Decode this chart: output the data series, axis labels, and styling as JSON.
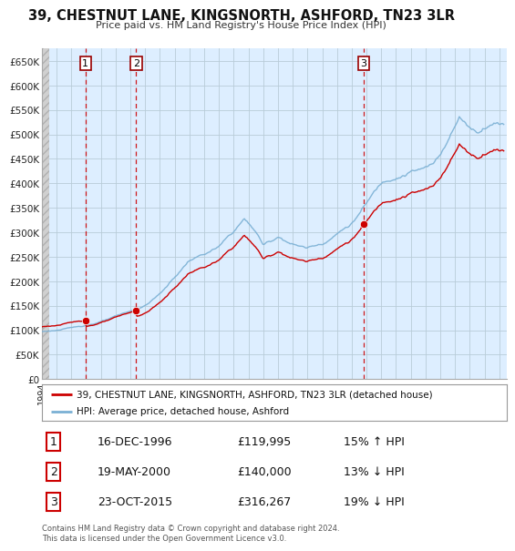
{
  "title": "39, CHESTNUT LANE, KINGSNORTH, ASHFORD, TN23 3LR",
  "subtitle": "Price paid vs. HM Land Registry's House Price Index (HPI)",
  "ylim": [
    0,
    675000
  ],
  "yticks": [
    0,
    50000,
    100000,
    150000,
    200000,
    250000,
    300000,
    350000,
    400000,
    450000,
    500000,
    550000,
    600000,
    650000
  ],
  "ytick_labels": [
    "£0",
    "£50K",
    "£100K",
    "£150K",
    "£200K",
    "£250K",
    "£300K",
    "£350K",
    "£400K",
    "£450K",
    "£500K",
    "£550K",
    "£600K",
    "£650K"
  ],
  "xlim_start": 1994.0,
  "xlim_end": 2025.5,
  "sale_dates": [
    1996.96,
    2000.38,
    2015.81
  ],
  "sale_prices": [
    119995,
    140000,
    316267
  ],
  "sale_labels": [
    "1",
    "2",
    "3"
  ],
  "property_color": "#cc0000",
  "hpi_color": "#7ab0d4",
  "dashed_line_color": "#cc0000",
  "chart_bg_color": "#ddeeff",
  "hatch_area_color": "#e8e8e8",
  "legend_property_label": "39, CHESTNUT LANE, KINGSNORTH, ASHFORD, TN23 3LR (detached house)",
  "legend_hpi_label": "HPI: Average price, detached house, Ashford",
  "table_rows": [
    [
      "1",
      "16-DEC-1996",
      "£119,995",
      "15% ↑ HPI"
    ],
    [
      "2",
      "19-MAY-2000",
      "£140,000",
      "13% ↓ HPI"
    ],
    [
      "3",
      "23-OCT-2015",
      "£316,267",
      "19% ↓ HPI"
    ]
  ],
  "footnote": "Contains HM Land Registry data © Crown copyright and database right 2024.\nThis data is licensed under the Open Government Licence v3.0.",
  "background_color": "#ffffff",
  "grid_color": "#b8ccd8"
}
